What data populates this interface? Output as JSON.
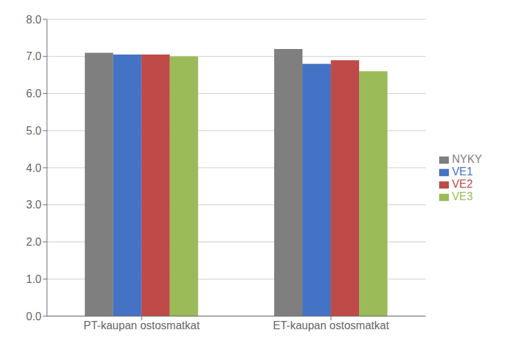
{
  "chart_data": {
    "type": "bar",
    "categories": [
      "PT-kaupan ostosmatkat",
      "ET-kaupan ostosmatkat"
    ],
    "series": [
      {
        "name": "NYKY",
        "color": "#7f7f7f",
        "values": [
          7.1,
          7.2
        ]
      },
      {
        "name": "VE1",
        "color": "#4472C4",
        "values": [
          7.05,
          6.8
        ]
      },
      {
        "name": "VE2",
        "color": "#BE4B48",
        "values": [
          7.05,
          6.9
        ]
      },
      {
        "name": "VE3",
        "color": "#9BBB59",
        "values": [
          7.0,
          6.6
        ]
      }
    ],
    "ylim": [
      0,
      8.0
    ],
    "yticks": [
      {
        "value": 0,
        "label": "0.0"
      },
      {
        "value": 1,
        "label": "1.0"
      },
      {
        "value": 2,
        "label": "2.0"
      },
      {
        "value": 3,
        "label": "3.0"
      },
      {
        "value": 4,
        "label": "4.0"
      },
      {
        "value": 5,
        "label": "5.0"
      },
      {
        "value": 6,
        "label": "6.0"
      },
      {
        "value": 7,
        "label": "7.0"
      },
      {
        "value": 8,
        "label": "8.0"
      }
    ],
    "grid": true,
    "legend": "right"
  }
}
